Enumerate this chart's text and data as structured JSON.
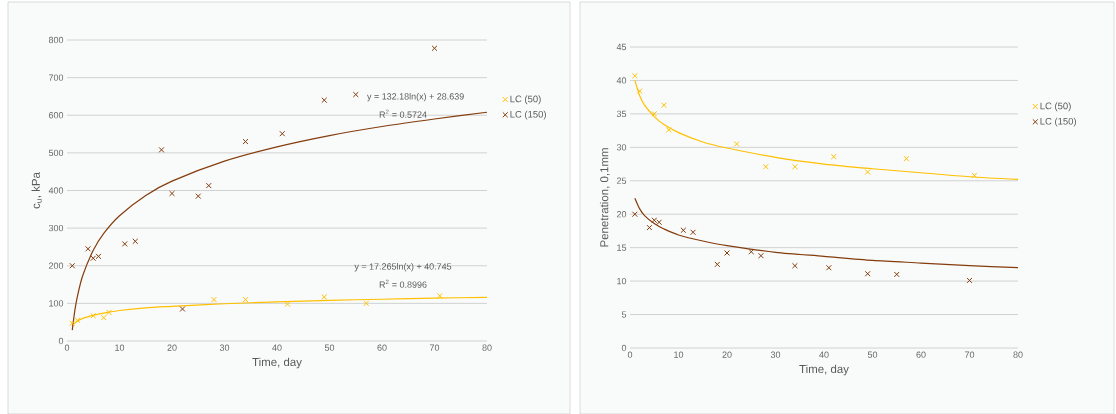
{
  "chart_data": [
    {
      "type": "scatter",
      "xlabel": "Time, day",
      "ylabel": "c$_{u}$, kPa",
      "xlim": [
        0,
        80
      ],
      "ylim": [
        0,
        800
      ],
      "xticks": [
        0,
        10,
        20,
        30,
        40,
        50,
        60,
        70,
        80
      ],
      "yticks": [
        0,
        100,
        200,
        300,
        400,
        500,
        600,
        700,
        800
      ],
      "grid": "y",
      "legend": "right",
      "marker": "cross",
      "annotations": [
        "y = 132.18ln(x) + 28.639",
        "R$^{2}$ = 0.5724",
        "y = 17.265ln(x) + 40.745",
        "R$^{2}$ = 0.8996"
      ],
      "series": [
        {
          "name": "LC (50)",
          "color": "#ffc000",
          "x": [
            1,
            2,
            5,
            7,
            8,
            28,
            34,
            42,
            49,
            57,
            71
          ],
          "values": [
            47,
            55,
            67,
            62,
            76,
            110,
            110,
            98,
            117,
            100,
            120
          ]
        },
        {
          "name": "LC (150)",
          "color": "#843c0c",
          "x": [
            1,
            4,
            5,
            6,
            11,
            13,
            18,
            20,
            22,
            25,
            27,
            34,
            41,
            49,
            55,
            70
          ],
          "values": [
            200,
            245,
            220,
            225,
            258,
            265,
            508,
            392,
            85,
            385,
            413,
            530,
            551,
            640,
            655,
            778
          ]
        },
        {
          "type": "line",
          "marker": "none",
          "color": "#ffc000",
          "x": [
            1,
            2,
            3,
            5,
            7,
            10,
            15,
            20,
            30,
            40,
            50,
            60,
            70,
            80
          ],
          "values": [
            41,
            53,
            60,
            68,
            74,
            81,
            88,
            92,
            99,
            104,
            108,
            111,
            114,
            116
          ]
        },
        {
          "type": "line",
          "marker": "none",
          "color": "#843c0c",
          "x": [
            1,
            1.5,
            2,
            3,
            5,
            7,
            10,
            15,
            20,
            30,
            40,
            50,
            60,
            70,
            80
          ],
          "values": [
            29,
            82,
            120,
            174,
            241,
            286,
            333,
            387,
            425,
            478,
            516,
            546,
            570,
            590,
            608
          ]
        }
      ]
    },
    {
      "type": "scatter",
      "xlabel": "Time, day",
      "ylabel": "Penetration, 0,1mm",
      "xlim": [
        0,
        80
      ],
      "ylim": [
        0,
        45
      ],
      "xticks": [
        0,
        10,
        20,
        30,
        40,
        50,
        60,
        70,
        80
      ],
      "yticks": [
        0,
        5,
        10,
        15,
        20,
        25,
        30,
        35,
        40,
        45
      ],
      "grid": "y",
      "legend": "right",
      "marker": "cross",
      "series": [
        {
          "name": "LC (50)",
          "color": "#ffc000",
          "x": [
            1,
            2,
            5,
            7,
            8,
            22,
            28,
            34,
            42,
            49,
            57,
            71
          ],
          "values": [
            40.7,
            38.4,
            35,
            36.3,
            32.6,
            30.5,
            27.1,
            27.1,
            28.6,
            26.3,
            28.3,
            25.8
          ]
        },
        {
          "name": "LC (150)",
          "color": "#843c0c",
          "x": [
            1,
            4,
            5,
            6,
            11,
            13,
            18,
            20,
            25,
            27,
            34,
            41,
            49,
            55,
            70
          ],
          "values": [
            20,
            18,
            19.1,
            18.8,
            17.6,
            17.3,
            12.5,
            14.2,
            14.4,
            13.8,
            12.3,
            12,
            11.1,
            11,
            10.1
          ]
        },
        {
          "type": "line",
          "marker": "none",
          "color": "#ffc000",
          "x": [
            1,
            2,
            3,
            5,
            7,
            10,
            15,
            20,
            30,
            40,
            50,
            60,
            70,
            80
          ],
          "values": [
            40,
            37.7,
            36.3,
            34.6,
            33.4,
            32.2,
            30.8,
            29.9,
            28.5,
            27.5,
            26.8,
            26.2,
            25.6,
            25.2
          ]
        },
        {
          "type": "line",
          "marker": "none",
          "color": "#843c0c",
          "x": [
            1,
            2,
            3,
            5,
            7,
            10,
            15,
            20,
            30,
            40,
            50,
            60,
            70,
            80
          ],
          "values": [
            22.4,
            20.8,
            19.8,
            18.6,
            17.8,
            16.9,
            16,
            15.3,
            14.3,
            13.7,
            13.1,
            12.7,
            12.3,
            12
          ]
        }
      ]
    }
  ]
}
